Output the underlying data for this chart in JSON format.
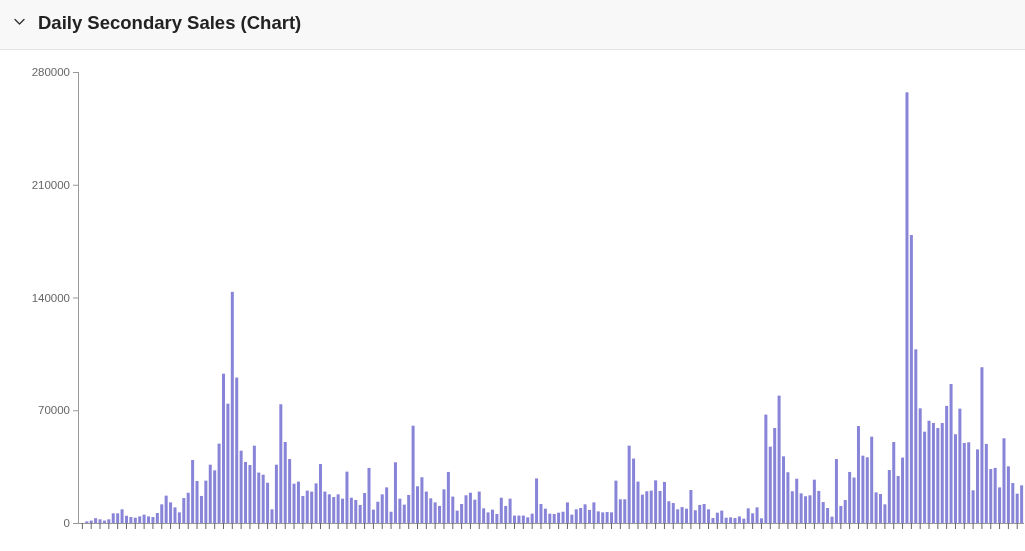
{
  "chart_data": {
    "type": "bar",
    "title": "Daily Secondary Sales (Chart)",
    "categories": [
      null,
      null,
      null,
      null,
      null,
      null,
      null,
      null,
      null,
      null,
      null,
      null,
      null,
      null,
      null,
      null,
      null,
      null,
      null,
      null,
      null,
      null,
      null,
      null,
      null,
      null,
      null,
      null,
      null,
      null,
      null,
      null,
      null,
      null,
      null,
      null,
      null,
      null,
      null,
      null,
      null,
      null,
      null,
      null,
      null,
      null,
      null,
      null,
      null,
      null,
      null,
      null,
      null,
      null,
      null,
      null,
      null,
      null,
      null,
      null,
      null,
      null,
      null,
      null,
      null,
      null,
      null,
      null,
      null,
      null,
      null,
      null,
      null,
      null,
      null,
      null,
      null,
      null,
      null,
      null,
      null,
      null,
      null,
      null,
      null,
      null,
      null,
      null,
      null,
      null,
      null,
      null,
      null,
      null,
      null,
      null,
      null,
      null,
      null,
      null,
      null,
      null,
      null,
      null,
      null,
      null,
      null,
      null,
      null,
      null,
      null,
      null,
      null,
      null,
      null,
      null,
      null,
      null,
      null,
      null,
      null,
      null,
      null,
      null,
      null,
      null,
      null,
      null,
      null,
      null,
      null,
      null,
      null,
      null,
      null,
      null,
      null,
      null,
      null,
      null,
      null,
      null,
      null,
      null,
      null,
      null,
      null,
      null,
      null,
      null,
      null,
      null,
      null,
      null,
      null,
      null,
      null,
      null,
      null,
      null,
      null,
      null,
      null,
      null,
      null,
      null,
      null,
      null,
      null,
      null,
      null,
      null,
      null,
      null,
      null,
      null,
      null,
      null,
      null,
      null,
      null,
      null,
      null,
      null,
      null,
      null,
      null,
      null,
      null,
      null,
      null,
      null,
      null,
      null,
      null,
      null,
      null,
      null,
      null,
      null,
      null,
      null,
      null,
      null,
      null,
      null,
      null,
      null,
      null,
      null,
      null,
      null,
      null,
      null
    ],
    "values": [
      null,
      1000,
      1500,
      3000,
      2300,
      1500,
      2300,
      6000,
      6000,
      8500,
      4500,
      3700,
      3300,
      4100,
      5200,
      4100,
      3700,
      6200,
      11600,
      17000,
      12800,
      9700,
      6600,
      15500,
      18800,
      39100,
      26100,
      16800,
      26300,
      36200,
      32700,
      49300,
      92700,
      74100,
      143500,
      90300,
      44900,
      37900,
      36000,
      48000,
      31300,
      30000,
      25000,
      8500,
      36200,
      73700,
      50300,
      39700,
      24400,
      25700,
      16800,
      20100,
      19500,
      24600,
      36600,
      19500,
      17800,
      16100,
      17800,
      15100,
      31900,
      15700,
      14300,
      11200,
      18600,
      34200,
      8300,
      13200,
      17800,
      22100,
      7000,
      37700,
      15100,
      11400,
      17400,
      60400,
      22800,
      28400,
      19500,
      15300,
      12800,
      10600,
      20900,
      31700,
      16400,
      7700,
      11800,
      17200,
      18800,
      14500,
      19500,
      9100,
      6600,
      8300,
      5600,
      15700,
      10600,
      15100,
      4600,
      4600,
      4600,
      3500,
      5800,
      27700,
      11800,
      8900,
      5800,
      5600,
      6400,
      7000,
      12800,
      5200,
      8500,
      9300,
      11600,
      8100,
      12800,
      7200,
      6600,
      6800,
      6600,
      26300,
      14700,
      14700,
      48000,
      40000,
      25700,
      17600,
      19700,
      20100,
      26500,
      19900,
      25500,
      13500,
      12400,
      8500,
      9900,
      8900,
      20500,
      7900,
      11200,
      11800,
      8500,
      3100,
      6400,
      7700,
      3300,
      3500,
      3100,
      4100,
      2700,
      9100,
      6000,
      9700,
      2900,
      67300,
      47400,
      59000,
      79100,
      41400,
      31500,
      19700,
      27500,
      18400,
      16600,
      17200,
      26900,
      19900,
      13000,
      9300,
      3900,
      39700,
      10600,
      14300,
      31700,
      28200,
      60200,
      41800,
      40800,
      53600,
      19000,
      18000,
      11600,
      32900,
      50300,
      29200,
      40600,
      267400,
      178800,
      107800,
      71200,
      56700,
      63500,
      62100,
      59000,
      62100,
      72700,
      86300,
      55100,
      71000,
      49700,
      50100,
      20300,
      45700,
      96700,
      49100,
      33500,
      34200,
      22100,
      52600,
      35200,
      24800,
      18200,
      23400
    ],
    "color": "#8884d8",
    "ylim": [
      0,
      280000
    ],
    "yticks": [
      0,
      70000,
      140000,
      210000,
      280000
    ],
    "tick_labels": "y"
  }
}
